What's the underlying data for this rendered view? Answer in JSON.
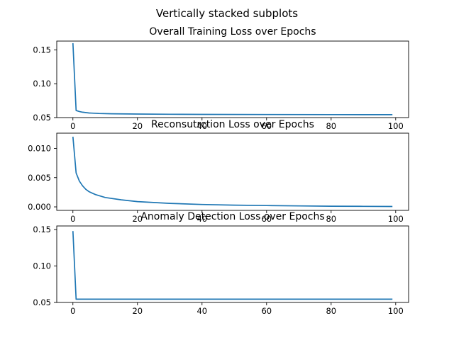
{
  "figure": {
    "suptitle": "Vertically stacked subplots"
  },
  "chart_data": [
    {
      "type": "line",
      "title": "Overall Training Loss over Epochs",
      "xlabel": "",
      "ylabel": "",
      "xlim": [
        -5,
        104
      ],
      "ylim": [
        0.05,
        0.163
      ],
      "x_ticks": [
        0,
        20,
        40,
        60,
        80,
        100
      ],
      "x_tick_labels": [
        "0",
        "20",
        "40",
        "60",
        "80",
        "100"
      ],
      "y_ticks": [
        0.05,
        0.1,
        0.15
      ],
      "y_tick_labels": [
        "0.05",
        "0.10",
        "0.15"
      ],
      "grid": false,
      "series": [
        {
          "color": "#1f77b4",
          "points": [
            [
              0,
              0.16
            ],
            [
              1,
              0.0605
            ],
            [
              2,
              0.059
            ],
            [
              3,
              0.058
            ],
            [
              5,
              0.0568
            ],
            [
              8,
              0.0561
            ],
            [
              12,
              0.0557
            ],
            [
              20,
              0.0552
            ],
            [
              30,
              0.0549
            ],
            [
              40,
              0.0547
            ],
            [
              60,
              0.0545
            ],
            [
              80,
              0.0544
            ],
            [
              99,
              0.0543
            ]
          ]
        }
      ]
    },
    {
      "type": "line",
      "title": "Reconsutrction Loss over Epochs",
      "xlabel": "",
      "ylabel": "",
      "xlim": [
        -5,
        104
      ],
      "ylim": [
        -0.0006,
        0.0126
      ],
      "x_ticks": [
        0,
        20,
        40,
        60,
        80,
        100
      ],
      "x_tick_labels": [
        "0",
        "20",
        "40",
        "60",
        "80",
        "100"
      ],
      "y_ticks": [
        0.0,
        0.005,
        0.01
      ],
      "y_tick_labels": [
        "0.000",
        "0.005",
        "0.010"
      ],
      "grid": false,
      "series": [
        {
          "color": "#1f77b4",
          "points": [
            [
              0,
              0.012
            ],
            [
              1,
              0.0058
            ],
            [
              2,
              0.0044
            ],
            [
              3,
              0.0036
            ],
            [
              4,
              0.003
            ],
            [
              5,
              0.0026
            ],
            [
              7,
              0.0021
            ],
            [
              10,
              0.0016
            ],
            [
              15,
              0.0012
            ],
            [
              20,
              0.0009
            ],
            [
              30,
              0.0006
            ],
            [
              40,
              0.0004
            ],
            [
              50,
              0.0003
            ],
            [
              60,
              0.00022
            ],
            [
              70,
              0.00016
            ],
            [
              80,
              0.00012
            ],
            [
              90,
              9e-05
            ],
            [
              99,
              7e-05
            ]
          ]
        }
      ]
    },
    {
      "type": "line",
      "title": "Anomaly Detection Loss over Epochs",
      "xlabel": "",
      "ylabel": "",
      "xlim": [
        -5,
        104
      ],
      "ylim": [
        0.05,
        0.155
      ],
      "x_ticks": [
        0,
        20,
        40,
        60,
        80,
        100
      ],
      "x_tick_labels": [
        "0",
        "20",
        "40",
        "60",
        "80",
        "100"
      ],
      "y_ticks": [
        0.05,
        0.1,
        0.15
      ],
      "y_tick_labels": [
        "0.05",
        "0.10",
        "0.15"
      ],
      "grid": false,
      "series": [
        {
          "color": "#1f77b4",
          "points": [
            [
              0,
              0.148
            ],
            [
              1,
              0.0545
            ],
            [
              20,
              0.0545
            ],
            [
              40,
              0.0545
            ],
            [
              60,
              0.0545
            ],
            [
              80,
              0.0545
            ],
            [
              99,
              0.0545
            ]
          ]
        }
      ]
    }
  ]
}
